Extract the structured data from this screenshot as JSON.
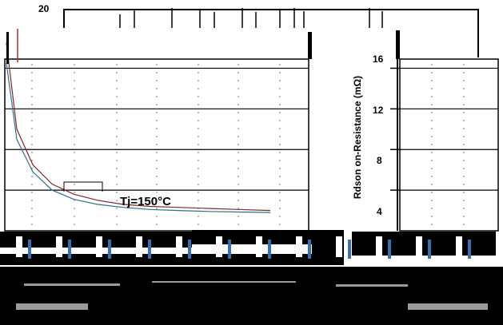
{
  "chart_data": {
    "type": "line",
    "ylabel": "Rdson on-Resistance (mΩ)",
    "y_ticks": [
      "20",
      "16",
      "12",
      "8",
      "4"
    ],
    "ylim": [
      0,
      20
    ],
    "grid": true,
    "annotations": [
      "Tj=150°C"
    ],
    "series": [
      {
        "values": [
          18.5,
          10,
          6.5,
          4.6,
          3.6,
          3.0,
          2.6,
          2.4,
          2.3,
          2.2,
          2.1,
          2.0
        ]
      },
      {
        "values": [
          16.5,
          9,
          5.8,
          4.0,
          3.1,
          2.6,
          2.3,
          2.1,
          2.0,
          1.9,
          1.85,
          1.8
        ]
      }
    ],
    "colors": {
      "series_a": "#7a2a2a",
      "series_b": "#2f6f8a",
      "frame": "#000000",
      "grid": "#000000"
    }
  }
}
